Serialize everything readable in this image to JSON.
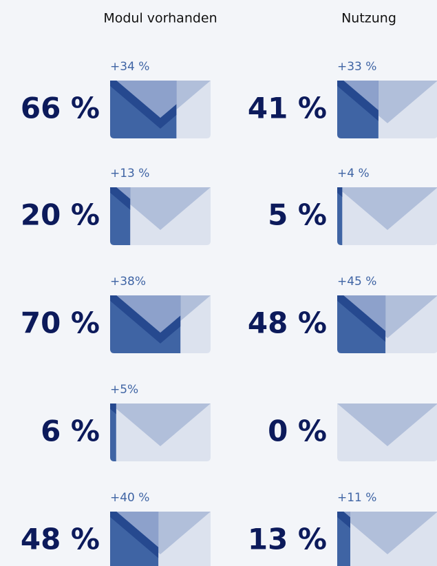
{
  "chart_data": {
    "type": "envelope-fill",
    "ylim": [
      0,
      100
    ],
    "series": [
      {
        "name": "Modul vorhanden",
        "values": [
          66,
          20,
          70,
          6,
          48
        ],
        "value_labels": [
          "66 %",
          "20 %",
          "70 %",
          "6 %",
          "48 %"
        ],
        "changes": [
          34,
          13,
          38,
          5,
          40
        ],
        "change_labels": [
          "+34 %",
          "+13 %",
          "+38%",
          "+5%",
          "+40 %"
        ]
      },
      {
        "name": "Nutzung",
        "values": [
          41,
          5,
          48,
          0,
          13
        ],
        "value_labels": [
          "41 %",
          "5 %",
          "48 %",
          "0 %",
          "13 %"
        ],
        "changes": [
          33,
          4,
          45,
          null,
          11
        ],
        "change_labels": [
          "+33 %",
          "+4 %",
          "+45 %",
          null,
          "+11 %"
        ]
      }
    ],
    "colors": {
      "fill": "#3f64a4",
      "empty": "#dce2ee",
      "flap": "#b1bfda",
      "flap_filled": "#8da1cb",
      "fold": "#26498f"
    }
  }
}
